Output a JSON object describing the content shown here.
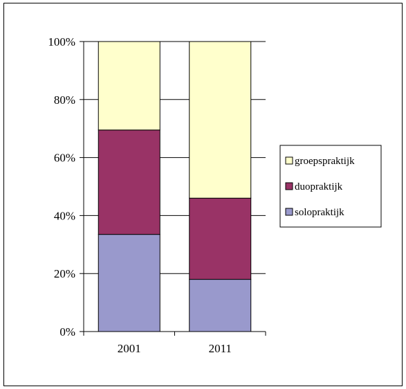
{
  "chart_data": {
    "type": "bar",
    "stacked": true,
    "categories": [
      "2001",
      "2011"
    ],
    "series": [
      {
        "name": "solopraktijk",
        "values": [
          33.5,
          18
        ],
        "color": "#9999cc"
      },
      {
        "name": "duopraktijk",
        "values": [
          36,
          28
        ],
        "color": "#993366"
      },
      {
        "name": "groepspraktijk",
        "values": [
          30.5,
          54
        ],
        "color": "#ffffcc"
      }
    ],
    "ylim": [
      0,
      100
    ],
    "yticks": [
      0,
      20,
      40,
      60,
      80,
      100
    ],
    "ytick_labels": [
      "0%",
      "20%",
      "40%",
      "60%",
      "80%",
      "100%"
    ],
    "grid": true,
    "legend_position": "right",
    "legend_order": [
      "groepspraktijk",
      "duopraktijk",
      "solopraktijk"
    ]
  }
}
